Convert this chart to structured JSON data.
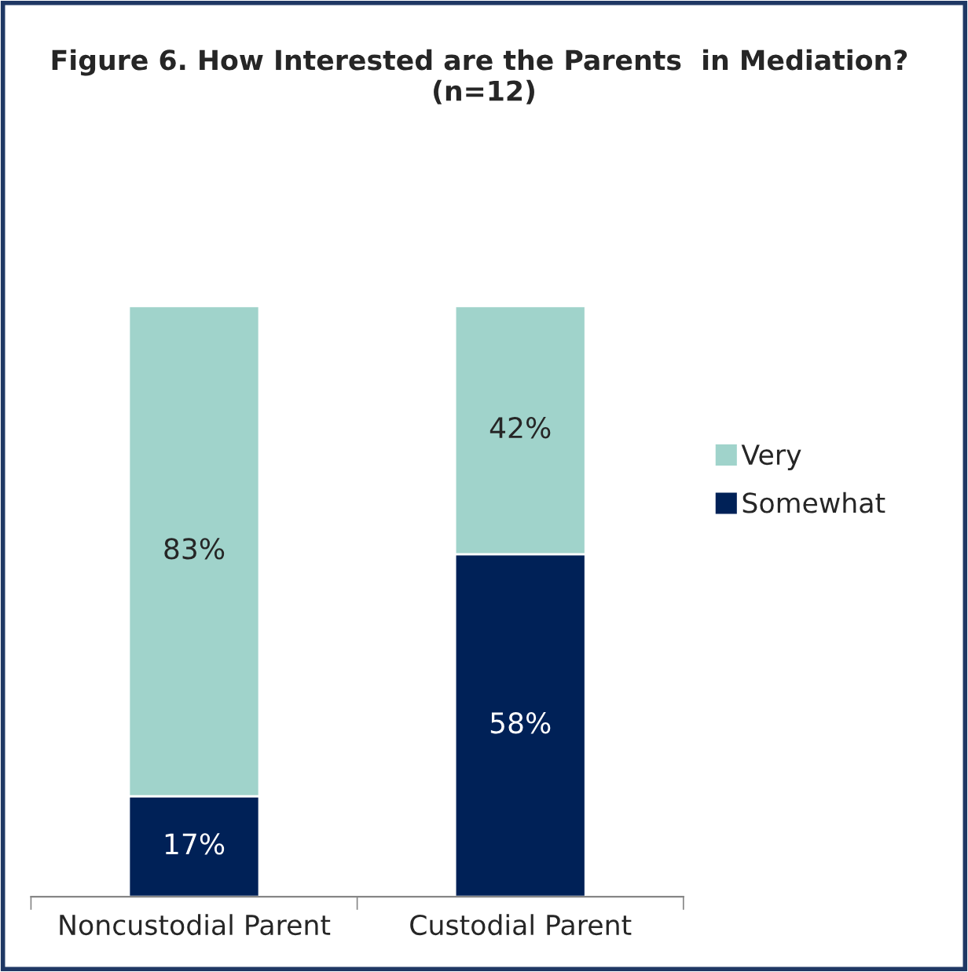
{
  "chart_data": {
    "type": "bar",
    "title": "Figure 6. How Interested are the Parents  in Mediation?  (n=12)",
    "stacked": true,
    "categories": [
      "Noncustodial Parent",
      "Custodial Parent"
    ],
    "series": [
      {
        "name": "Somewhat",
        "color": "#002157",
        "values": [
          17,
          58
        ],
        "value_labels": [
          "17%",
          "58%"
        ]
      },
      {
        "name": "Very",
        "color": "#a0d3cb",
        "values": [
          83,
          42
        ],
        "value_labels": [
          "83%",
          "42%"
        ]
      }
    ],
    "legend": "right"
  }
}
